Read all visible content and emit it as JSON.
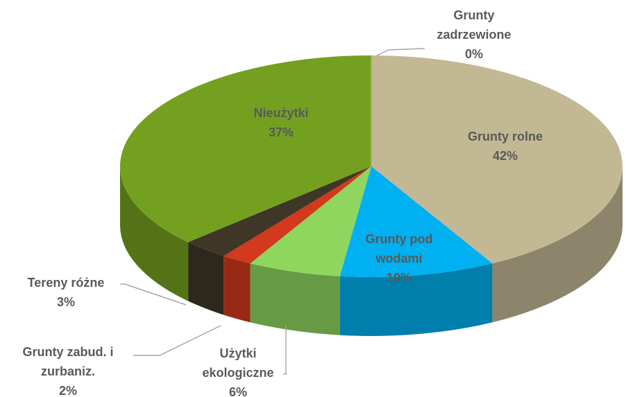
{
  "chart_data": {
    "type": "pie",
    "categories": [
      "Grunty rolne",
      "Grunty pod wodami",
      "Użytki ekologiczne",
      "Grunty zabud. i zurbaniz.",
      "Tereny różne",
      "Nieużytki",
      "Grunty zadrzewione"
    ],
    "values": [
      42,
      10,
      6,
      2,
      3,
      37,
      0
    ],
    "value_labels": [
      "42%",
      "10%",
      "6%",
      "2%",
      "3%",
      "37%",
      "0%"
    ],
    "colors": [
      "#c2b994",
      "#00b0f0",
      "#8fd65e",
      "#d3391c",
      "#3e3627",
      "#74a020",
      "#9bbb59"
    ]
  }
}
